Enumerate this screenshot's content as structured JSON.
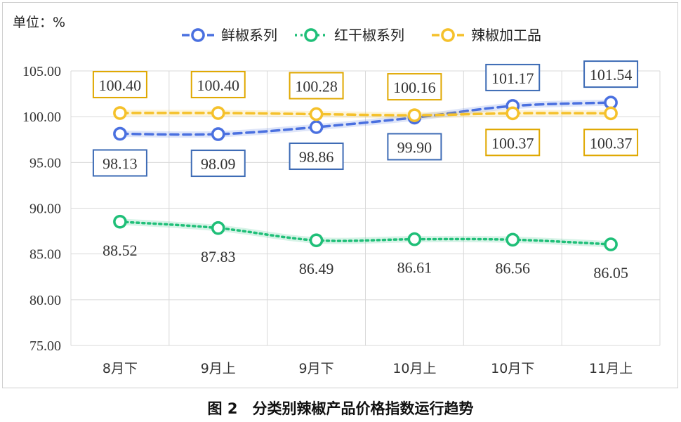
{
  "unit_label": "单位：%",
  "caption": "图 2　分类别辣椒产品价格指数运行趋势",
  "chart_data": {
    "type": "line",
    "title": "",
    "xlabel": "",
    "ylabel": "",
    "categories": [
      "8月下",
      "9月上",
      "9月下",
      "10月上",
      "10月下",
      "11月上"
    ],
    "ylim": [
      75,
      105
    ],
    "yticks": [
      "75.00",
      "80.00",
      "85.00",
      "90.00",
      "95.00",
      "100.00",
      "105.00"
    ],
    "grid": true,
    "legend_position": "top",
    "series": [
      {
        "name": "鲜椒系列",
        "color": "#4a70e0",
        "line_style": "dashed",
        "values": [
          98.13,
          98.09,
          98.86,
          99.9,
          101.17,
          101.54
        ],
        "labels": [
          "98.13",
          "98.09",
          "98.86",
          "99.90",
          "101.17",
          "101.54"
        ],
        "label_boxed": true,
        "box_color": "#3d6bb5"
      },
      {
        "name": "红干椒系列",
        "color": "#1fbf78",
        "line_style": "dotted",
        "values": [
          88.52,
          87.83,
          86.49,
          86.61,
          86.56,
          86.05
        ],
        "labels": [
          "88.52",
          "87.83",
          "86.49",
          "86.61",
          "86.56",
          "86.05"
        ],
        "label_boxed": false
      },
      {
        "name": "辣椒加工品",
        "color": "#f5c12b",
        "line_style": "dashed",
        "values": [
          100.4,
          100.4,
          100.28,
          100.16,
          100.37,
          100.37
        ],
        "labels": [
          "100.40",
          "100.40",
          "100.28",
          "100.16",
          "100.37",
          "100.37"
        ],
        "label_boxed": true,
        "box_color": "#e0a800"
      }
    ]
  }
}
